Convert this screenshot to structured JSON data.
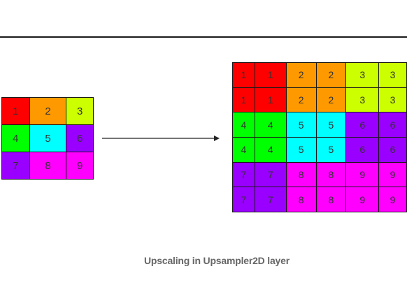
{
  "diagram": {
    "caption": "Upscaling in Upsampler2D layer",
    "input_grid": {
      "cells": [
        [
          "1",
          "2",
          "3"
        ],
        [
          "4",
          "5",
          "6"
        ],
        [
          "7",
          "8",
          "9"
        ]
      ],
      "colors": [
        [
          "#ff0000",
          "#ff9900",
          "#ccff00"
        ],
        [
          "#00ff00",
          "#00ffff",
          "#9900ff"
        ],
        [
          "#9900ff",
          "#ff00ff",
          "#ff00ff"
        ]
      ]
    },
    "upsampled_grid": {
      "cells": [
        [
          "1",
          "1",
          "2",
          "2",
          "3",
          "3"
        ],
        [
          "1",
          "1",
          "2",
          "2",
          "3",
          "3"
        ],
        [
          "4",
          "4",
          "5",
          "5",
          "6",
          "6"
        ],
        [
          "4",
          "4",
          "5",
          "5",
          "6",
          "6"
        ],
        [
          "7",
          "7",
          "8",
          "8",
          "9",
          "9"
        ],
        [
          "7",
          "7",
          "8",
          "8",
          "9",
          "9"
        ]
      ],
      "colors": [
        [
          "#ff0000",
          "#ff0000",
          "#ff9900",
          "#ff9900",
          "#ccff00",
          "#ccff00"
        ],
        [
          "#ff0000",
          "#ff0000",
          "#ff9900",
          "#ff9900",
          "#ccff00",
          "#ccff00"
        ],
        [
          "#00ff00",
          "#00ff00",
          "#00ffff",
          "#00ffff",
          "#9900ff",
          "#9900ff"
        ],
        [
          "#00ff00",
          "#00ff00",
          "#00ffff",
          "#00ffff",
          "#9900ff",
          "#9900ff"
        ],
        [
          "#9900ff",
          "#9900ff",
          "#ff00ff",
          "#ff00ff",
          "#ff00ff",
          "#ff00ff"
        ],
        [
          "#9900ff",
          "#9900ff",
          "#ff00ff",
          "#ff00ff",
          "#ff00ff",
          "#ff00ff"
        ]
      ]
    },
    "arrow_color": "#222222",
    "rule_color": "#1a1a1a"
  }
}
